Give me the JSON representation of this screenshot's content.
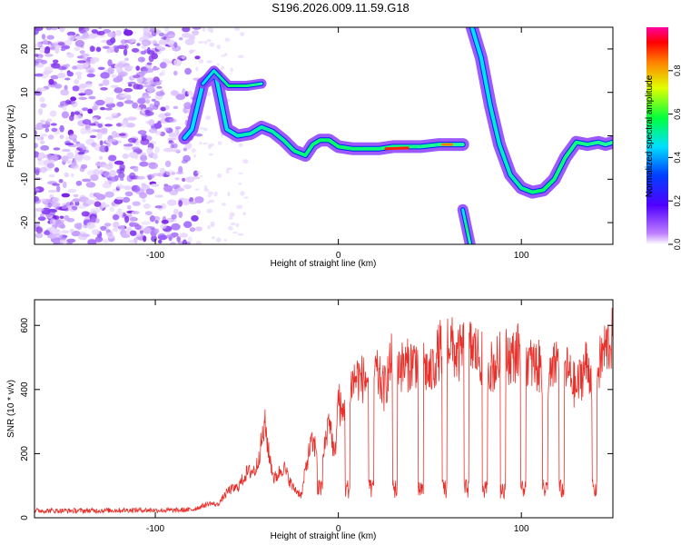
{
  "title": "S196.2026.009.11.59.G18",
  "chart_data": [
    {
      "type": "heatmap",
      "xlabel": "Height of straight line (km)",
      "ylabel": "Frequency (Hz)",
      "xlim": [
        -166,
        150
      ],
      "ylim": [
        -25,
        25
      ],
      "x_ticks": [
        -100,
        0,
        100
      ],
      "y_ticks": [
        -20,
        -10,
        0,
        10,
        20
      ],
      "colorbar": {
        "label": "Normalized spectral amplitude",
        "range": [
          0,
          1
        ],
        "ticks": [
          "0.0",
          "0.2",
          "0.4",
          "0.6",
          "0.8"
        ],
        "colors": [
          "#ffffff",
          "#a040ff",
          "#0000ff",
          "#00ffff",
          "#00ff00",
          "#ffff00",
          "#ff8000",
          "#ff0000",
          "#ff00ff"
        ]
      },
      "ridge": {
        "x": [
          -84,
          -80,
          -74,
          -67,
          -61,
          -55,
          -48,
          -42,
          -36,
          -30,
          -24,
          -18,
          -14,
          -10,
          -5,
          0,
          8,
          15,
          22,
          30,
          38,
          45,
          55,
          62,
          68
        ],
        "y": [
          -0.5,
          1.5,
          12,
          14,
          1.5,
          0,
          0.5,
          2,
          1,
          -1,
          -3.5,
          -4.5,
          -2,
          -1,
          -1,
          -2.5,
          -3,
          -3,
          -3,
          -2.5,
          -2.5,
          -2.5,
          -2,
          -2,
          -2
        ]
      },
      "upper_branch": {
        "x": [
          -74,
          -68,
          -60,
          -50,
          -42
        ],
        "y": [
          12,
          15,
          11.5,
          11.5,
          12
        ]
      },
      "right_ridge": {
        "x": [
          73,
          78,
          83,
          88,
          94,
          100,
          106,
          112,
          118,
          124,
          130,
          136,
          142,
          146,
          150
        ],
        "y": [
          25,
          18,
          7,
          -2,
          -9,
          -12,
          -13,
          -12.5,
          -10,
          -5,
          -1.5,
          -2,
          -1.5,
          -2,
          -1.5
        ]
      },
      "interference_trace": {
        "x": [
          68,
          72
        ],
        "y": [
          -17,
          -25
        ]
      }
    },
    {
      "type": "line",
      "xlabel": "Height of straight line (km)",
      "ylabel": "SNR (10 * v/v)",
      "xlim": [
        -166,
        150
      ],
      "ylim": [
        0,
        680
      ],
      "x_ticks": [
        -100,
        0,
        100
      ],
      "y_ticks": [
        0,
        200,
        400,
        600
      ],
      "color": "#e8302a",
      "series": [
        {
          "x": [
            -166,
            -140,
            -110,
            -90,
            -80,
            -70,
            -66,
            -60,
            -55,
            -50,
            -45,
            -40,
            -38,
            -35,
            -30,
            -25,
            -20,
            -18,
            -15,
            -12,
            -10,
            -8,
            -5,
            -2,
            0,
            2,
            5,
            10,
            15,
            20,
            25,
            30,
            35,
            40,
            45,
            50,
            55,
            60,
            65,
            70,
            75,
            80,
            85,
            90,
            95,
            100,
            105,
            110,
            115,
            120,
            125,
            130,
            135,
            140,
            145,
            150
          ],
          "y": [
            22,
            22,
            24,
            23,
            25,
            45,
            40,
            85,
            95,
            140,
            150,
            290,
            200,
            120,
            160,
            95,
            70,
            150,
            230,
            220,
            80,
            200,
            320,
            180,
            380,
            310,
            400,
            440,
            430,
            460,
            400,
            510,
            470,
            480,
            500,
            440,
            520,
            560,
            500,
            540,
            520,
            480,
            470,
            510,
            500,
            530,
            480,
            470,
            420,
            500,
            460,
            400,
            480,
            430,
            520,
            560
          ]
        }
      ],
      "dropouts_x": [
        -10,
        5,
        18,
        31,
        45,
        58,
        70,
        80,
        90,
        101,
        113,
        122,
        140
      ]
    }
  ]
}
